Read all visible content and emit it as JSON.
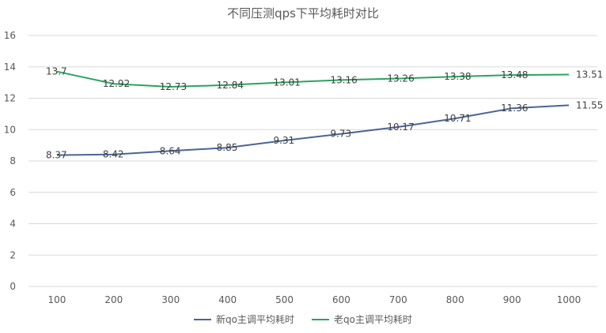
{
  "chart_data": {
    "type": "line",
    "title": "不同压测qps下平均耗时对比",
    "xlabel": "",
    "ylabel": "",
    "x": [
      "100",
      "200",
      "300",
      "400",
      "500",
      "600",
      "700",
      "800",
      "900",
      "1000"
    ],
    "ylim": [
      0,
      16
    ],
    "yticks": [
      "0",
      "2",
      "4",
      "6",
      "8",
      "10",
      "12",
      "14",
      "16"
    ],
    "grid": true,
    "legend_position": "bottom",
    "series": [
      {
        "name": "新qo主调平均耗时",
        "color": "#4a6499",
        "values": [
          8.37,
          8.42,
          8.64,
          8.85,
          9.31,
          9.73,
          10.17,
          10.71,
          11.36,
          11.55
        ]
      },
      {
        "name": "老qo主调平均耗时",
        "color": "#2aa35f",
        "values": [
          13.7,
          12.92,
          12.73,
          12.84,
          13.01,
          13.16,
          13.26,
          13.38,
          13.48,
          13.51
        ]
      }
    ]
  }
}
